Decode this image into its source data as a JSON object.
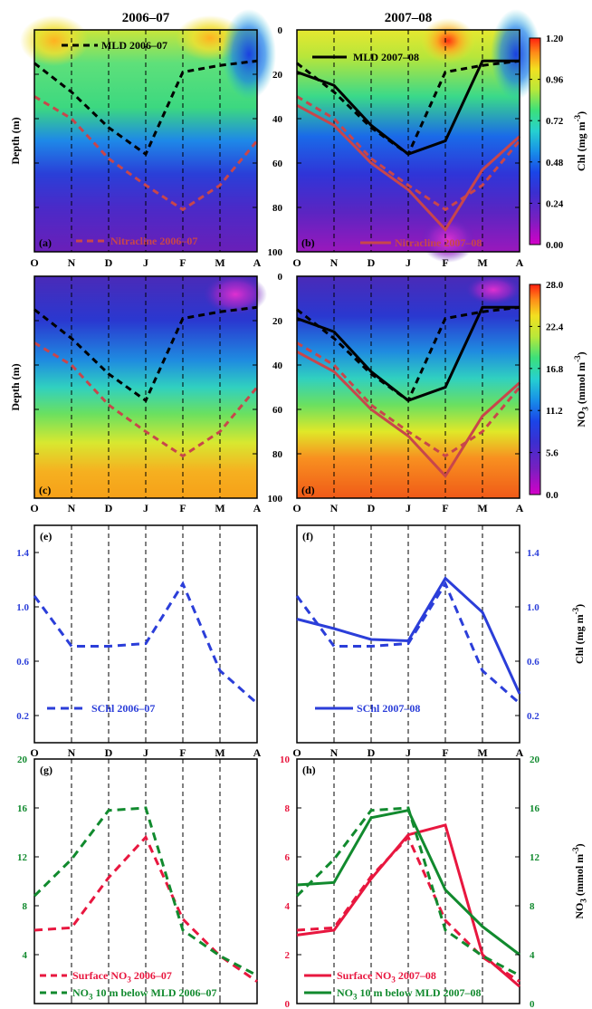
{
  "titles": {
    "left": "2006–07",
    "right": "2007–08"
  },
  "months": [
    "O",
    "N",
    "D",
    "J",
    "F",
    "M",
    "A"
  ],
  "colors": {
    "mld": "#000000",
    "nitracline": "#c8464b",
    "schl": "#2b3ed9",
    "surface_no3": "#e8173f",
    "no3_below": "#118a2e",
    "chl_axis": "#2b3ed9",
    "no3_axis": "#118a2e",
    "surf_axis": "#e8173f"
  },
  "colorbars": {
    "chl": {
      "label_main": "Chl (mg m",
      "label_sup": "-3",
      "label_end": ")",
      "ticks": [
        "1.20",
        "0.96",
        "0.72",
        "0.48",
        "0.24",
        "0.00"
      ]
    },
    "no3": {
      "label_main": "NO",
      "label_sub": "3",
      "label_rest": " (mmol m",
      "label_sup": "-3",
      "label_end": ")",
      "ticks": [
        "28.0",
        "22.4",
        "16.8",
        "11.2",
        "5.6",
        "0.0"
      ]
    }
  },
  "side_labels": {
    "depth": "Depth (m)",
    "chl": {
      "main": "Chl (mg m",
      "sup": "-3",
      "end": ")"
    },
    "no3": {
      "main": "NO",
      "sub": "3",
      "rest": " (mmol m",
      "sup": "-3",
      "end": ")"
    }
  },
  "chart_data": [
    {
      "type": "heatmap",
      "panel": "(a)",
      "field": "Chl",
      "x": [
        "O",
        "N",
        "D",
        "J",
        "F",
        "M",
        "A"
      ],
      "depth_ticks": [
        0,
        20,
        40,
        60,
        80,
        100
      ],
      "ylim": [
        100,
        0
      ],
      "clim": [
        0,
        1.2
      ],
      "series": [
        {
          "name": "MLD 2006–07",
          "style": "dashed",
          "values": [
            15,
            28,
            44,
            56,
            19,
            16,
            14
          ]
        },
        {
          "name": "Nitracline 2006–07",
          "style": "dashed",
          "values": [
            30,
            40,
            58,
            70,
            81,
            70,
            50
          ]
        }
      ]
    },
    {
      "type": "heatmap",
      "panel": "(b)",
      "field": "Chl",
      "x": [
        "O",
        "N",
        "D",
        "J",
        "F",
        "M",
        "A"
      ],
      "depth_ticks": [
        0,
        20,
        40,
        60,
        80,
        100
      ],
      "ylim": [
        100,
        0
      ],
      "clim": [
        0,
        1.2
      ],
      "series": [
        {
          "name": "MLD 2006–07",
          "style": "dashed",
          "values": [
            15,
            28,
            44,
            56,
            19,
            16,
            14
          ]
        },
        {
          "name": "MLD 2007–08",
          "style": "solid",
          "values": [
            19,
            25,
            43,
            56,
            50,
            14,
            14
          ]
        },
        {
          "name": "Nitracline 2006–07",
          "style": "dashed",
          "values": [
            30,
            40,
            58,
            70,
            81,
            70,
            50
          ]
        },
        {
          "name": "Nitracline 2007–08",
          "style": "solid",
          "values": [
            34,
            43,
            60,
            72,
            90,
            63,
            48
          ]
        }
      ]
    },
    {
      "type": "heatmap",
      "panel": "(c)",
      "field": "NO3",
      "x": [
        "O",
        "N",
        "D",
        "J",
        "F",
        "M",
        "A"
      ],
      "depth_ticks": [
        0,
        20,
        40,
        60,
        80,
        100
      ],
      "ylim": [
        100,
        0
      ],
      "clim": [
        0,
        28
      ],
      "series": [
        {
          "name": "MLD 2006–07",
          "style": "dashed",
          "values": [
            15,
            28,
            44,
            56,
            19,
            16,
            14
          ]
        },
        {
          "name": "Nitracline 2006–07",
          "style": "dashed",
          "values": [
            30,
            40,
            58,
            70,
            81,
            70,
            50
          ]
        }
      ]
    },
    {
      "type": "heatmap",
      "panel": "(d)",
      "field": "NO3",
      "x": [
        "O",
        "N",
        "D",
        "J",
        "F",
        "M",
        "A"
      ],
      "depth_ticks": [
        0,
        20,
        40,
        60,
        80,
        100
      ],
      "ylim": [
        100,
        0
      ],
      "clim": [
        0,
        28
      ],
      "series": [
        {
          "name": "MLD 2006–07",
          "style": "dashed",
          "values": [
            15,
            28,
            44,
            56,
            19,
            16,
            14
          ]
        },
        {
          "name": "MLD 2007–08",
          "style": "solid",
          "values": [
            19,
            25,
            43,
            56,
            50,
            14,
            14
          ]
        },
        {
          "name": "Nitracline 2006–07",
          "style": "dashed",
          "values": [
            30,
            40,
            58,
            70,
            81,
            70,
            50
          ]
        },
        {
          "name": "Nitracline 2007–08",
          "style": "solid",
          "values": [
            34,
            43,
            60,
            72,
            90,
            63,
            48
          ]
        }
      ]
    },
    {
      "type": "line",
      "panel": "(e)",
      "x": [
        "O",
        "N",
        "D",
        "J",
        "F",
        "M",
        "A"
      ],
      "ylim": [
        0,
        1.6
      ],
      "yticks": [
        "0.2",
        "0.6",
        "1.0",
        "1.4"
      ],
      "series": [
        {
          "name": "SChl 2006–07",
          "style": "dashed",
          "values": [
            1.08,
            0.71,
            0.71,
            0.73,
            1.17,
            0.53,
            0.29
          ]
        }
      ]
    },
    {
      "type": "line",
      "panel": "(f)",
      "x": [
        "O",
        "N",
        "D",
        "J",
        "F",
        "M",
        "A"
      ],
      "ylim": [
        0,
        1.6
      ],
      "yticks": [
        "0.2",
        "0.6",
        "1.0",
        "1.4"
      ],
      "series": [
        {
          "name": "SChl 2006–07",
          "style": "dashed",
          "values": [
            1.08,
            0.71,
            0.71,
            0.73,
            1.17,
            0.53,
            0.29
          ]
        },
        {
          "name": "SChl 2007–08",
          "style": "solid",
          "values": [
            0.91,
            0.84,
            0.76,
            0.75,
            1.21,
            0.96,
            0.36
          ]
        }
      ]
    },
    {
      "type": "line",
      "panel": "(g)",
      "x": [
        "O",
        "N",
        "D",
        "J",
        "F",
        "M",
        "A"
      ],
      "ylim": [
        0,
        20
      ],
      "yticks": [
        "4",
        "8",
        "12",
        "16",
        "20"
      ],
      "series": [
        {
          "name": "Surface NO3 2006–07",
          "style": "dashed",
          "values": [
            6.0,
            6.2,
            10.3,
            13.6,
            6.9,
            3.9,
            1.8
          ]
        },
        {
          "name": "NO3 10 m below MLD 2006–07",
          "style": "dashed",
          "values": [
            8.8,
            11.8,
            15.8,
            16.0,
            6.0,
            3.9,
            2.3
          ]
        }
      ]
    },
    {
      "type": "line",
      "panel": "(h)",
      "x": [
        "O",
        "N",
        "D",
        "J",
        "F",
        "M",
        "A"
      ],
      "ylim_left": [
        0,
        10
      ],
      "yticks_left": [
        "0",
        "2",
        "4",
        "6",
        "8",
        "10"
      ],
      "ylim_right": [
        0,
        20
      ],
      "yticks_right": [
        "0",
        "4",
        "8",
        "12",
        "16",
        "20"
      ],
      "series": [
        {
          "name": "Surface NO3 2006–07",
          "axis": "left",
          "style": "dashed",
          "values": [
            3.0,
            3.1,
            5.2,
            6.8,
            3.4,
            1.9,
            0.9
          ]
        },
        {
          "name": "Surface NO3 2007–08",
          "axis": "left",
          "style": "solid",
          "values": [
            2.8,
            3.0,
            5.1,
            6.9,
            7.3,
            2.0,
            0.7
          ]
        },
        {
          "name": "NO3 10 m below MLD 2006–07",
          "axis": "right",
          "style": "dashed",
          "values": [
            8.8,
            11.8,
            15.8,
            16.0,
            6.0,
            3.9,
            2.3
          ]
        },
        {
          "name": "NO3 10 m below MLD 2007–08",
          "axis": "right",
          "style": "solid",
          "values": [
            9.7,
            9.9,
            15.2,
            15.8,
            9.3,
            6.3,
            4.0
          ]
        }
      ]
    }
  ],
  "legends": {
    "a_mld": "MLD 2006–07",
    "a_nitra": "Nitracline 2006–07",
    "b_mld": "MLD 2007–08",
    "b_nitra": "Nitracline 2007–08",
    "e_schl": "SChl 2006–07",
    "f_schl": "SChl 2007–08",
    "g_surf": {
      "main": "Surface NO",
      "sub": "3",
      "end": " 2006–07"
    },
    "g_below": {
      "main": "NO",
      "sub": "3",
      "end": " 10 m below MLD 2006–07"
    },
    "h_surf": {
      "main": "Surface NO",
      "sub": "3",
      "end": " 2007–08"
    },
    "h_below": {
      "main": "NO",
      "sub": "3",
      "end": " 10 m below MLD 2007–08"
    }
  }
}
